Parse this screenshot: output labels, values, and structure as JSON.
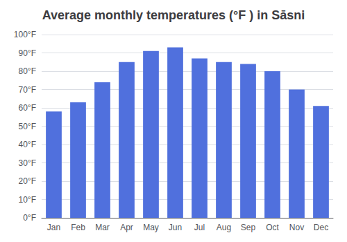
{
  "chart_data": {
    "type": "bar",
    "title": "Average monthly temperatures (°F ) in Sāsni",
    "categories": [
      "Jan",
      "Feb",
      "Mar",
      "Apr",
      "May",
      "Jun",
      "Jul",
      "Aug",
      "Sep",
      "Oct",
      "Nov",
      "Dec"
    ],
    "values": [
      58,
      63,
      74,
      85,
      91,
      93,
      87,
      85,
      84,
      80,
      70,
      61
    ],
    "ylim": [
      0,
      100
    ],
    "yticks": [
      {
        "value": 0,
        "label": "0°F"
      },
      {
        "value": 10,
        "label": "10°F"
      },
      {
        "value": 20,
        "label": "20°F"
      },
      {
        "value": 30,
        "label": "30°F"
      },
      {
        "value": 40,
        "label": "40°F"
      },
      {
        "value": 50,
        "label": "50°F"
      },
      {
        "value": 60,
        "label": "60°F"
      },
      {
        "value": 70,
        "label": "70°F"
      },
      {
        "value": 80,
        "label": "80°F"
      },
      {
        "value": 90,
        "label": "90°F"
      },
      {
        "value": 100,
        "label": "100°F"
      }
    ],
    "grid": true
  }
}
